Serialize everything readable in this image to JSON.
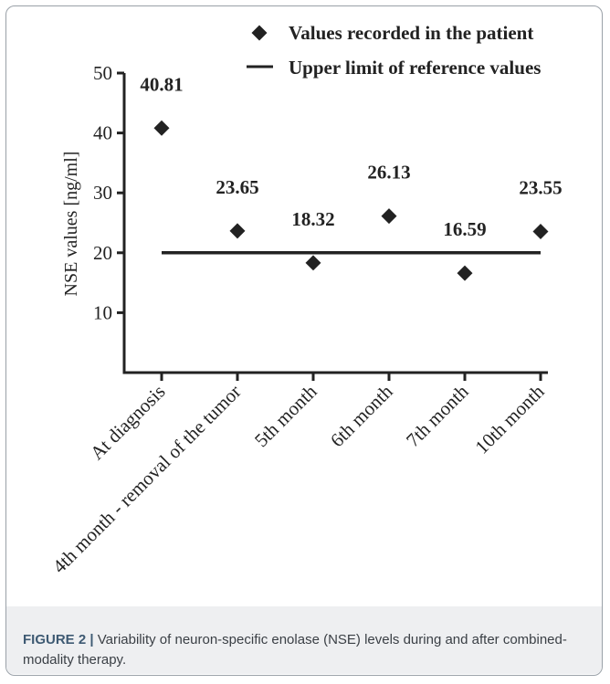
{
  "chart_data": {
    "type": "scatter",
    "title": "",
    "xlabel": "",
    "ylabel": "NSE values [ng/ml]",
    "ylim": [
      0,
      50
    ],
    "yticks": [
      10,
      20,
      30,
      40,
      50
    ],
    "categories": [
      "At diagnosis",
      "4th month - removal of the tumor",
      "5th month",
      "6th month",
      "7th month",
      "10th month"
    ],
    "series": [
      {
        "name": "Values recorded in the patient",
        "marker": "diamond",
        "values": [
          40.81,
          23.65,
          18.32,
          26.13,
          16.59,
          23.55
        ],
        "labels": [
          "40.81",
          "23.65",
          "18.32",
          "26.13",
          "16.59",
          "23.55"
        ]
      },
      {
        "name": "Upper limit of reference values",
        "marker": "line",
        "values": [
          20,
          20,
          20,
          20,
          20,
          20
        ]
      }
    ],
    "legend_position": "top-right",
    "grid": false
  },
  "caption": {
    "label": "FIGURE 2 |",
    "text": "Variability of neuron-specific enolase (NSE) levels during and after combined-modality therapy."
  },
  "colors": {
    "ink": "#222222",
    "frame": "#9aa1a8",
    "caption_band": "#eeeff1",
    "caption_label": "#3e5a73"
  }
}
